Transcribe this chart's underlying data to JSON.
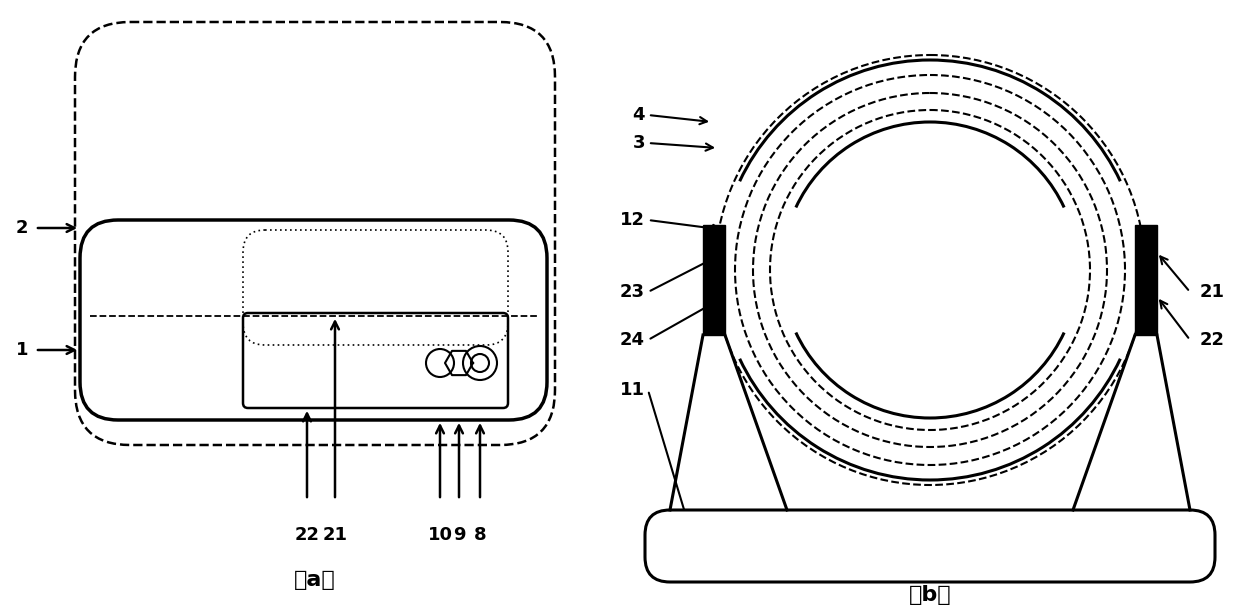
{
  "fig_width": 12.4,
  "fig_height": 6.13,
  "bg_color": "#ffffff",
  "line_color": "#000000"
}
